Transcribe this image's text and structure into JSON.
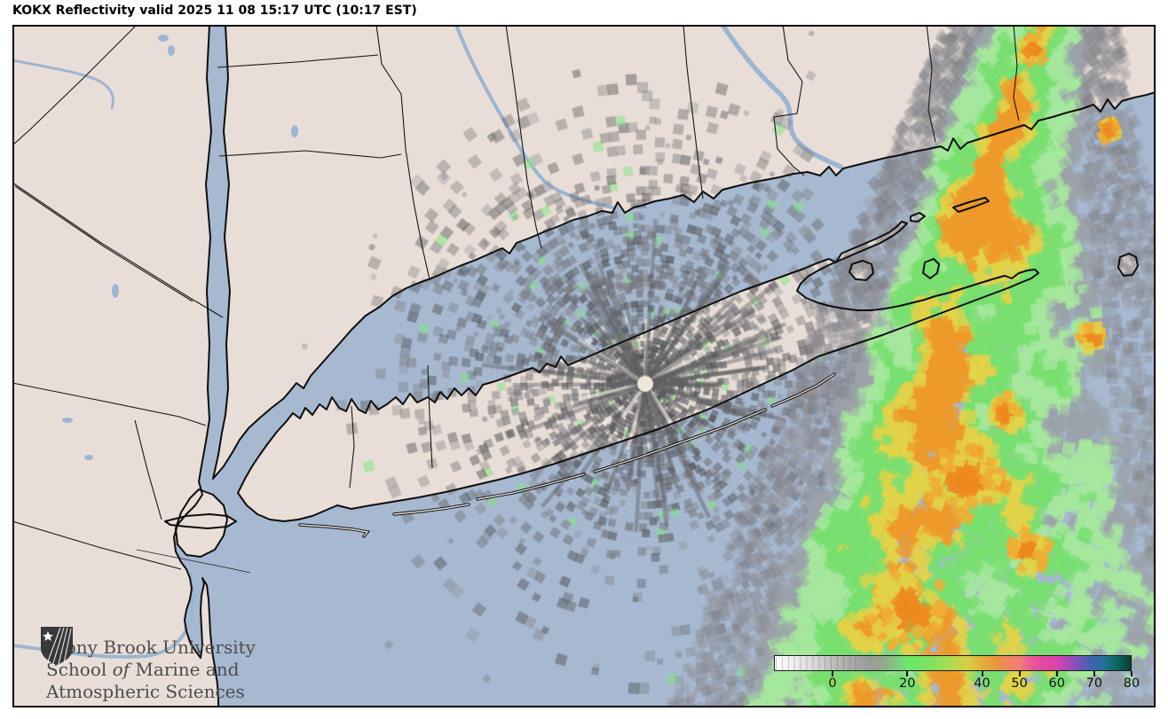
{
  "header": {
    "title": "KOKX Reflectivity valid 2025 11 08 15:17 UTC (10:17 EST)"
  },
  "radar": {
    "station": "KOKX",
    "product": "Reflectivity",
    "valid": "2025 11 08 15:17 UTC (10:17 EST)"
  },
  "colorbar": {
    "tick_labels": [
      "0",
      "20",
      "40",
      "50",
      "60",
      "70",
      "80"
    ],
    "tick_values": [
      0,
      20,
      40,
      50,
      60,
      70,
      80
    ],
    "value_min": -15.7,
    "value_max": 80,
    "stops": [
      {
        "p": 0,
        "c": "#ffffff"
      },
      {
        "p": 0.06,
        "c": "#ececec"
      },
      {
        "p": 0.11,
        "c": "#d9d9d9"
      },
      {
        "p": 0.164,
        "c": "#bdbdbd"
      },
      {
        "p": 0.22,
        "c": "#a8a8a8"
      },
      {
        "p": 0.27,
        "c": "#999b98"
      },
      {
        "p": 0.31,
        "c": "#93ab8b"
      },
      {
        "p": 0.345,
        "c": "#82cb80"
      },
      {
        "p": 0.373,
        "c": "#6ce76c"
      },
      {
        "p": 0.44,
        "c": "#7ee25e"
      },
      {
        "p": 0.49,
        "c": "#a8dc50"
      },
      {
        "p": 0.54,
        "c": "#d8cf47"
      },
      {
        "p": 0.583,
        "c": "#e3ad39"
      },
      {
        "p": 0.625,
        "c": "#ec9340"
      },
      {
        "p": 0.657,
        "c": "#ef8561"
      },
      {
        "p": 0.688,
        "c": "#f07d77"
      },
      {
        "p": 0.715,
        "c": "#ea5e94"
      },
      {
        "p": 0.752,
        "c": "#e446a0"
      },
      {
        "p": 0.793,
        "c": "#d944ae"
      },
      {
        "p": 0.825,
        "c": "#a94ab8"
      },
      {
        "p": 0.857,
        "c": "#7355bc"
      },
      {
        "p": 0.888,
        "c": "#3f63b0"
      },
      {
        "p": 0.92,
        "c": "#2b6da0"
      },
      {
        "p": 0.94,
        "c": "#17707c"
      },
      {
        "p": 0.97,
        "c": "#0c5f55"
      },
      {
        "p": 1,
        "c": "#07402f"
      }
    ]
  },
  "logo": {
    "line1": "Stony Brook University",
    "line2_pre": "School ",
    "line2_italic": "of",
    "line2_post": " Marine and",
    "line3": "Atmospheric Sciences"
  },
  "palette": {
    "water": "#a6b9d1",
    "land": "#e9ded7",
    "coast": "#0d0d0d",
    "river": "#9eb5d1",
    "clutter_green": "#86e286",
    "precip_pale_green": "#a6e89e",
    "precip_green": "#79df70",
    "precip_yellow": "#e2d24a",
    "precip_orange": "#ef9a2b",
    "precip_gray": "#9aa1aa",
    "radar_dot": "#efe6dc"
  }
}
